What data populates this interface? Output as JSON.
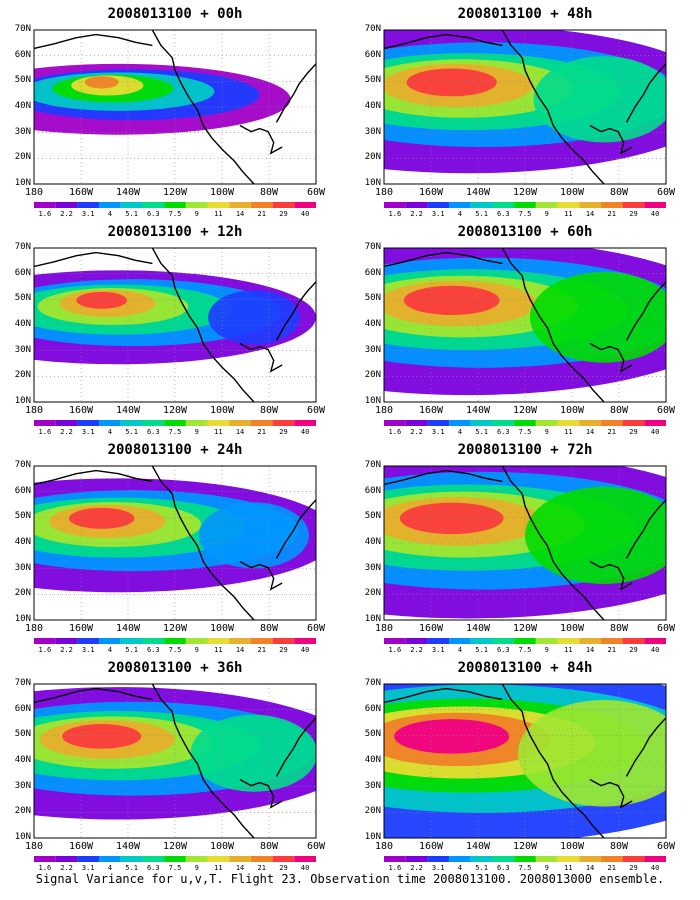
{
  "figure": {
    "caption": "Signal Variance for u,v,T. Flight 23. Observation time 2008013100. 2008013000 ensemble."
  },
  "axes": {
    "lat_labels": [
      "70N",
      "60N",
      "50N",
      "40N",
      "30N",
      "20N",
      "10N"
    ],
    "lon_labels": [
      "180",
      "160W",
      "140W",
      "120W",
      "100W",
      "80W",
      "60W"
    ]
  },
  "colorbar": {
    "labels": [
      "1.6",
      "2.2",
      "3.1",
      "4",
      "5.1",
      "6.3",
      "7.5",
      "9",
      "11",
      "14",
      "21",
      "29",
      "40"
    ],
    "colors": [
      "#a000c8",
      "#7a00dc",
      "#1e3cff",
      "#0096ff",
      "#00c8c8",
      "#00dc8c",
      "#00dc00",
      "#a0e632",
      "#e6dc32",
      "#e6af2d",
      "#f08228",
      "#fa3c3c",
      "#f00082"
    ]
  },
  "map_colors": {
    "land_outline": "#000000",
    "grid": "#8c8c8c"
  },
  "panels": [
    {
      "title": "2008013100 + 00h",
      "level": 0.1
    },
    {
      "title": "2008013100 + 48h",
      "level": 0.6
    },
    {
      "title": "2008013100 + 12h",
      "level": 0.25
    },
    {
      "title": "2008013100 + 60h",
      "level": 0.65
    },
    {
      "title": "2008013100 + 24h",
      "level": 0.38
    },
    {
      "title": "2008013100 + 72h",
      "level": 0.72
    },
    {
      "title": "2008013100 + 36h",
      "level": 0.5
    },
    {
      "title": "2008013100 + 84h",
      "level": 0.82
    }
  ]
}
